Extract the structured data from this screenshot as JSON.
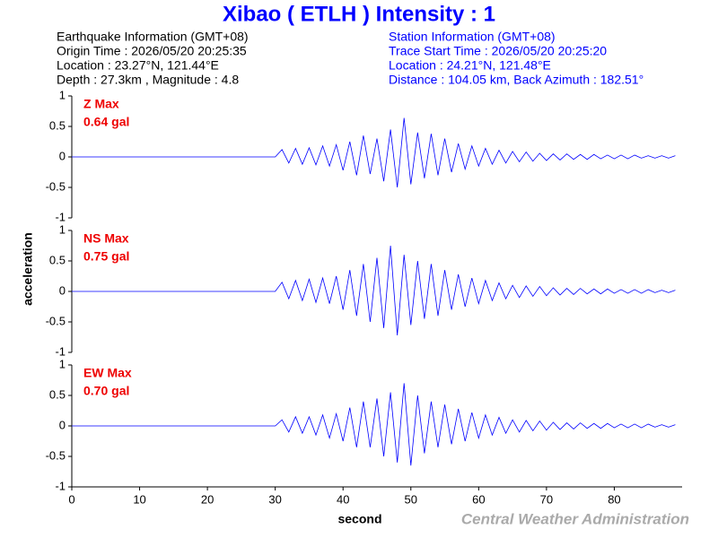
{
  "header": {
    "title": "Xibao ( ETLH ) Intensity : 1",
    "left": [
      "Earthquake Information  (GMT+08)",
      "Origin Time : 2026/05/20 20:25:35",
      "Location : 23.27°N, 121.44°E",
      "Depth : 27.3km , Magnitude : 4.8"
    ],
    "right": [
      "Station Information  (GMT+08)",
      "Trace Start Time : 2026/05/20 20:25:20",
      "Location : 24.21°N, 121.48°E",
      "Distance : 104.05 km, Back Azimuth : 182.51°"
    ]
  },
  "footer": "Central Weather Administration",
  "chart_data": [
    {
      "type": "line",
      "annotation": [
        "Z Max",
        "0.64 gal"
      ],
      "color": "#0000ff",
      "xlim": [
        0,
        90
      ],
      "ylim": [
        -1,
        1
      ],
      "yticks": [
        -1,
        -0.5,
        0,
        0.5,
        1
      ],
      "x": [
        0,
        1,
        2,
        3,
        4,
        5,
        6,
        7,
        8,
        9,
        10,
        11,
        12,
        13,
        14,
        15,
        16,
        17,
        18,
        19,
        20,
        21,
        22,
        23,
        24,
        25,
        26,
        27,
        28,
        29,
        30,
        31,
        32,
        33,
        34,
        35,
        36,
        37,
        38,
        39,
        40,
        41,
        42,
        43,
        44,
        45,
        46,
        47,
        48,
        49,
        50,
        51,
        52,
        53,
        54,
        55,
        56,
        57,
        58,
        59,
        60,
        61,
        62,
        63,
        64,
        65,
        66,
        67,
        68,
        69,
        70,
        71,
        72,
        73,
        74,
        75,
        76,
        77,
        78,
        79,
        80,
        81,
        82,
        83,
        84,
        85,
        86,
        87,
        88,
        89
      ],
      "values": [
        0,
        0,
        0,
        0,
        0,
        0,
        0,
        0,
        0,
        0,
        0,
        0,
        0,
        0,
        0,
        0,
        0,
        0,
        0,
        0,
        0,
        0,
        0,
        0,
        0,
        0,
        0,
        0,
        0,
        0,
        0,
        0.12,
        -0.1,
        0.14,
        -0.12,
        0.15,
        -0.13,
        0.18,
        -0.15,
        0.2,
        -0.22,
        0.25,
        -0.3,
        0.35,
        -0.28,
        0.3,
        -0.4,
        0.45,
        -0.5,
        0.64,
        -0.45,
        0.4,
        -0.35,
        0.38,
        -0.3,
        0.3,
        -0.25,
        0.22,
        -0.2,
        0.18,
        -0.15,
        0.14,
        -0.12,
        0.11,
        -0.1,
        0.09,
        -0.08,
        0.08,
        -0.07,
        0.06,
        -0.06,
        0.05,
        -0.05,
        0.05,
        -0.04,
        0.04,
        -0.04,
        0.04,
        -0.03,
        0.03,
        -0.03,
        0.03,
        -0.03,
        0.03,
        -0.02,
        0.02,
        -0.02,
        0.02,
        -0.02,
        0.02
      ]
    },
    {
      "type": "line",
      "annotation": [
        "NS Max",
        "0.75 gal"
      ],
      "ylabel": "acceleration",
      "color": "#0000ff",
      "xlim": [
        0,
        90
      ],
      "ylim": [
        -1,
        1
      ],
      "yticks": [
        -1,
        -0.5,
        0,
        0.5,
        1
      ],
      "x": [
        0,
        1,
        2,
        3,
        4,
        5,
        6,
        7,
        8,
        9,
        10,
        11,
        12,
        13,
        14,
        15,
        16,
        17,
        18,
        19,
        20,
        21,
        22,
        23,
        24,
        25,
        26,
        27,
        28,
        29,
        30,
        31,
        32,
        33,
        34,
        35,
        36,
        37,
        38,
        39,
        40,
        41,
        42,
        43,
        44,
        45,
        46,
        47,
        48,
        49,
        50,
        51,
        52,
        53,
        54,
        55,
        56,
        57,
        58,
        59,
        60,
        61,
        62,
        63,
        64,
        65,
        66,
        67,
        68,
        69,
        70,
        71,
        72,
        73,
        74,
        75,
        76,
        77,
        78,
        79,
        80,
        81,
        82,
        83,
        84,
        85,
        86,
        87,
        88,
        89
      ],
      "values": [
        0,
        0,
        0,
        0,
        0,
        0,
        0,
        0,
        0,
        0,
        0,
        0,
        0,
        0,
        0,
        0,
        0,
        0,
        0,
        0,
        0,
        0,
        0,
        0,
        0,
        0,
        0,
        0,
        0,
        0,
        0,
        0.15,
        -0.12,
        0.18,
        -0.15,
        0.2,
        -0.18,
        0.22,
        -0.2,
        0.25,
        -0.3,
        0.35,
        -0.4,
        0.45,
        -0.5,
        0.55,
        -0.6,
        0.75,
        -0.72,
        0.6,
        -0.55,
        0.5,
        -0.45,
        0.45,
        -0.4,
        0.35,
        -0.3,
        0.28,
        -0.25,
        0.22,
        -0.2,
        0.18,
        -0.15,
        0.14,
        -0.12,
        0.1,
        -0.1,
        0.09,
        -0.08,
        0.08,
        -0.07,
        0.06,
        -0.06,
        0.05,
        -0.05,
        0.05,
        -0.04,
        0.04,
        -0.04,
        0.04,
        -0.03,
        0.03,
        -0.03,
        0.03,
        -0.03,
        0.03,
        -0.02,
        0.02,
        -0.02,
        0.02
      ]
    },
    {
      "type": "line",
      "annotation": [
        "EW Max",
        "0.70 gal"
      ],
      "xlabel": "second",
      "color": "#0000ff",
      "xlim": [
        0,
        90
      ],
      "xticks": [
        0,
        10,
        20,
        30,
        40,
        50,
        60,
        70,
        80
      ],
      "ylim": [
        -1,
        1
      ],
      "yticks": [
        -1,
        -0.5,
        0,
        0.5,
        1
      ],
      "x": [
        0,
        1,
        2,
        3,
        4,
        5,
        6,
        7,
        8,
        9,
        10,
        11,
        12,
        13,
        14,
        15,
        16,
        17,
        18,
        19,
        20,
        21,
        22,
        23,
        24,
        25,
        26,
        27,
        28,
        29,
        30,
        31,
        32,
        33,
        34,
        35,
        36,
        37,
        38,
        39,
        40,
        41,
        42,
        43,
        44,
        45,
        46,
        47,
        48,
        49,
        50,
        51,
        52,
        53,
        54,
        55,
        56,
        57,
        58,
        59,
        60,
        61,
        62,
        63,
        64,
        65,
        66,
        67,
        68,
        69,
        70,
        71,
        72,
        73,
        74,
        75,
        76,
        77,
        78,
        79,
        80,
        81,
        82,
        83,
        84,
        85,
        86,
        87,
        88,
        89
      ],
      "values": [
        0,
        0,
        0,
        0,
        0,
        0,
        0,
        0,
        0,
        0,
        0,
        0,
        0,
        0,
        0,
        0,
        0,
        0,
        0,
        0,
        0,
        0,
        0,
        0,
        0,
        0,
        0,
        0,
        0,
        0,
        0,
        0.1,
        -0.1,
        0.15,
        -0.12,
        0.15,
        -0.15,
        0.18,
        -0.2,
        0.2,
        -0.25,
        0.3,
        -0.35,
        0.4,
        -0.35,
        0.45,
        -0.5,
        0.55,
        -0.6,
        0.7,
        -0.65,
        0.5,
        -0.45,
        0.4,
        -0.35,
        0.35,
        -0.3,
        0.28,
        -0.25,
        0.22,
        -0.2,
        0.18,
        -0.15,
        0.14,
        -0.12,
        0.1,
        -0.1,
        0.09,
        -0.08,
        0.08,
        -0.07,
        0.06,
        -0.06,
        0.05,
        -0.05,
        0.05,
        -0.04,
        0.04,
        -0.04,
        0.04,
        -0.03,
        0.03,
        -0.03,
        0.03,
        -0.03,
        0.03,
        -0.02,
        0.02,
        -0.02,
        0.02
      ]
    }
  ]
}
